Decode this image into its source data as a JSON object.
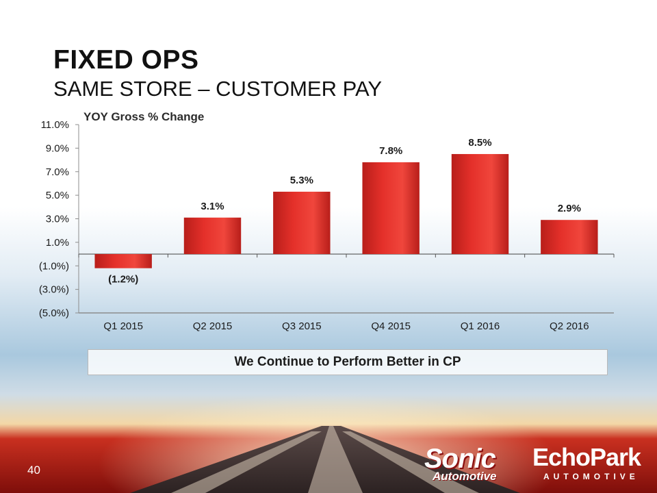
{
  "slide": {
    "title": "FIXED OPS",
    "subtitle": "SAME STORE – CUSTOMER PAY",
    "callout": "We Continue to Perform Better in CP",
    "page_number": "40"
  },
  "logos": {
    "sonic": "Sonic",
    "sonic_sub": "Automotive",
    "echopark": "EchoPark",
    "echopark_sub": "AUTOMOTIVE"
  },
  "colors": {
    "bar": "#e4302a",
    "bar_dark": "#b81e1a",
    "axis": "#8c8c8c",
    "text": "#1a1a1a"
  },
  "chart_data": {
    "type": "bar",
    "title": "YOY Gross % Change",
    "categories": [
      "Q1 2015",
      "Q2 2015",
      "Q3 2015",
      "Q4 2015",
      "Q1 2016",
      "Q2 2016"
    ],
    "values": [
      -1.2,
      3.1,
      5.3,
      7.8,
      8.5,
      2.9
    ],
    "data_labels": [
      "(1.2%)",
      "3.1%",
      "5.3%",
      "7.8%",
      "8.5%",
      "2.9%"
    ],
    "y_ticks": [
      11,
      9,
      7,
      5,
      3,
      1,
      -1,
      -3,
      -5
    ],
    "y_tick_labels": [
      "11.0%",
      "9.0%",
      "7.0%",
      "5.0%",
      "3.0%",
      "1.0%",
      "(1.0%)",
      "(3.0%)",
      "(5.0%)"
    ],
    "ylim": [
      -5,
      11
    ],
    "grid": false,
    "legend": "none"
  }
}
